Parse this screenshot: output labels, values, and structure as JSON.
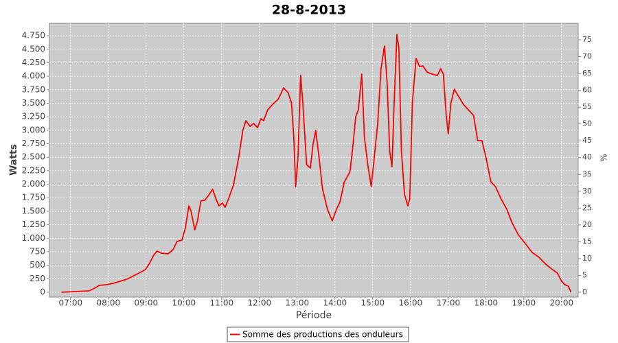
{
  "chart_data": {
    "type": "line",
    "title": "28-8-2013",
    "xlabel": "Période",
    "ylabel": "Watts",
    "y2label": "%",
    "legend": "bottom",
    "grid": true,
    "background": "#cccccc",
    "xlim": [
      6.44,
      20.44
    ],
    "xticks": [
      {
        "value": 7,
        "label": "07:00"
      },
      {
        "value": 8,
        "label": "08:00"
      },
      {
        "value": 9,
        "label": "09:00"
      },
      {
        "value": 10,
        "label": "10:00"
      },
      {
        "value": 11,
        "label": "11:00"
      },
      {
        "value": 12,
        "label": "12:00"
      },
      {
        "value": 13,
        "label": "13:00"
      },
      {
        "value": 14,
        "label": "14:00"
      },
      {
        "value": 15,
        "label": "15:00"
      },
      {
        "value": 16,
        "label": "16:00"
      },
      {
        "value": 17,
        "label": "17:00"
      },
      {
        "value": 18,
        "label": "18:00"
      },
      {
        "value": 19,
        "label": "19:00"
      },
      {
        "value": 20,
        "label": "20:00"
      }
    ],
    "ylim": [
      -89,
      4980
    ],
    "yticks": [
      0,
      250,
      500,
      750,
      {
        "value": 1000,
        "label": "1.000"
      },
      {
        "value": 1250,
        "label": "1.250"
      },
      {
        "value": 1500,
        "label": "1.500"
      },
      {
        "value": 1750,
        "label": "1.750"
      },
      {
        "value": 2000,
        "label": "2.000"
      },
      {
        "value": 2250,
        "label": "2.250"
      },
      {
        "value": 2500,
        "label": "2.500"
      },
      {
        "value": 2750,
        "label": "2.750"
      },
      {
        "value": 3000,
        "label": "3.000"
      },
      {
        "value": 3250,
        "label": "3.250"
      },
      {
        "value": 3500,
        "label": "3.500"
      },
      {
        "value": 3750,
        "label": "3.750"
      },
      {
        "value": 4000,
        "label": "4.000"
      },
      {
        "value": 4250,
        "label": "4.250"
      },
      {
        "value": 4500,
        "label": "4.500"
      },
      {
        "value": 4750,
        "label": "4.750"
      }
    ],
    "y2lim": [
      -1.43,
      79.9
    ],
    "y2ticks": [
      0,
      5,
      10,
      15,
      20,
      25,
      30,
      35,
      40,
      45,
      50,
      55,
      60,
      65,
      70,
      75
    ],
    "x": [
      6.76,
      7.13,
      7.49,
      7.64,
      7.76,
      7.95,
      8.13,
      8.31,
      8.49,
      8.67,
      8.85,
      8.98,
      9.09,
      9.2,
      9.29,
      9.4,
      9.58,
      9.71,
      9.82,
      9.95,
      10.04,
      10.13,
      10.18,
      10.29,
      10.36,
      10.45,
      10.55,
      10.65,
      10.76,
      10.85,
      10.93,
      11.02,
      11.09,
      11.18,
      11.31,
      11.45,
      11.56,
      11.64,
      11.75,
      11.85,
      11.95,
      12.04,
      12.11,
      12.22,
      12.35,
      12.49,
      12.64,
      12.76,
      12.85,
      12.91,
      12.96,
      13.02,
      13.09,
      13.15,
      13.25,
      13.35,
      13.42,
      13.49,
      13.58,
      13.67,
      13.8,
      13.93,
      14.04,
      14.13,
      14.25,
      14.4,
      14.47,
      14.55,
      14.62,
      14.71,
      14.78,
      14.87,
      14.96,
      15.04,
      15.13,
      15.22,
      15.31,
      15.38,
      15.45,
      15.51,
      15.56,
      15.64,
      15.69,
      15.76,
      15.84,
      15.93,
      15.98,
      16.05,
      16.15,
      16.24,
      16.33,
      16.44,
      16.58,
      16.71,
      16.8,
      16.87,
      16.95,
      17.0,
      17.07,
      17.16,
      17.27,
      17.4,
      17.53,
      17.67,
      17.78,
      17.89,
      18.0,
      18.13,
      18.25,
      18.4,
      18.55,
      18.69,
      18.85,
      19.04,
      19.22,
      19.4,
      19.58,
      19.76,
      19.89,
      20.0,
      20.09,
      20.18,
      20.25
    ],
    "series": [
      {
        "name": "Somme des productions des onduleurs",
        "color": "#ff0000",
        "values": [
          0,
          13,
          25,
          76,
          127,
          140,
          165,
          203,
          241,
          305,
          368,
          419,
          533,
          686,
          762,
          724,
          711,
          787,
          940,
          965,
          1194,
          1600,
          1524,
          1156,
          1321,
          1689,
          1702,
          1791,
          1905,
          1727,
          1600,
          1651,
          1575,
          1727,
          1981,
          2489,
          2997,
          3175,
          3073,
          3124,
          3048,
          3213,
          3175,
          3378,
          3480,
          3569,
          3785,
          3696,
          3505,
          2870,
          1956,
          2489,
          4013,
          3505,
          2362,
          2299,
          2743,
          2997,
          2489,
          1918,
          1537,
          1321,
          1537,
          1664,
          2045,
          2235,
          2680,
          3251,
          3378,
          4039,
          2870,
          2362,
          1956,
          2489,
          3124,
          4140,
          4559,
          3886,
          2616,
          2324,
          3378,
          4775,
          4521,
          2616,
          1816,
          1600,
          1727,
          3505,
          4331,
          4178,
          4191,
          4077,
          4039,
          4013,
          4140,
          4039,
          3251,
          2934,
          3505,
          3759,
          3632,
          3480,
          3378,
          3277,
          2807,
          2807,
          2489,
          2045,
          1956,
          1727,
          1537,
          1283,
          1067,
          902,
          737,
          648,
          521,
          419,
          356,
          203,
          140,
          114,
          0
        ]
      }
    ]
  }
}
